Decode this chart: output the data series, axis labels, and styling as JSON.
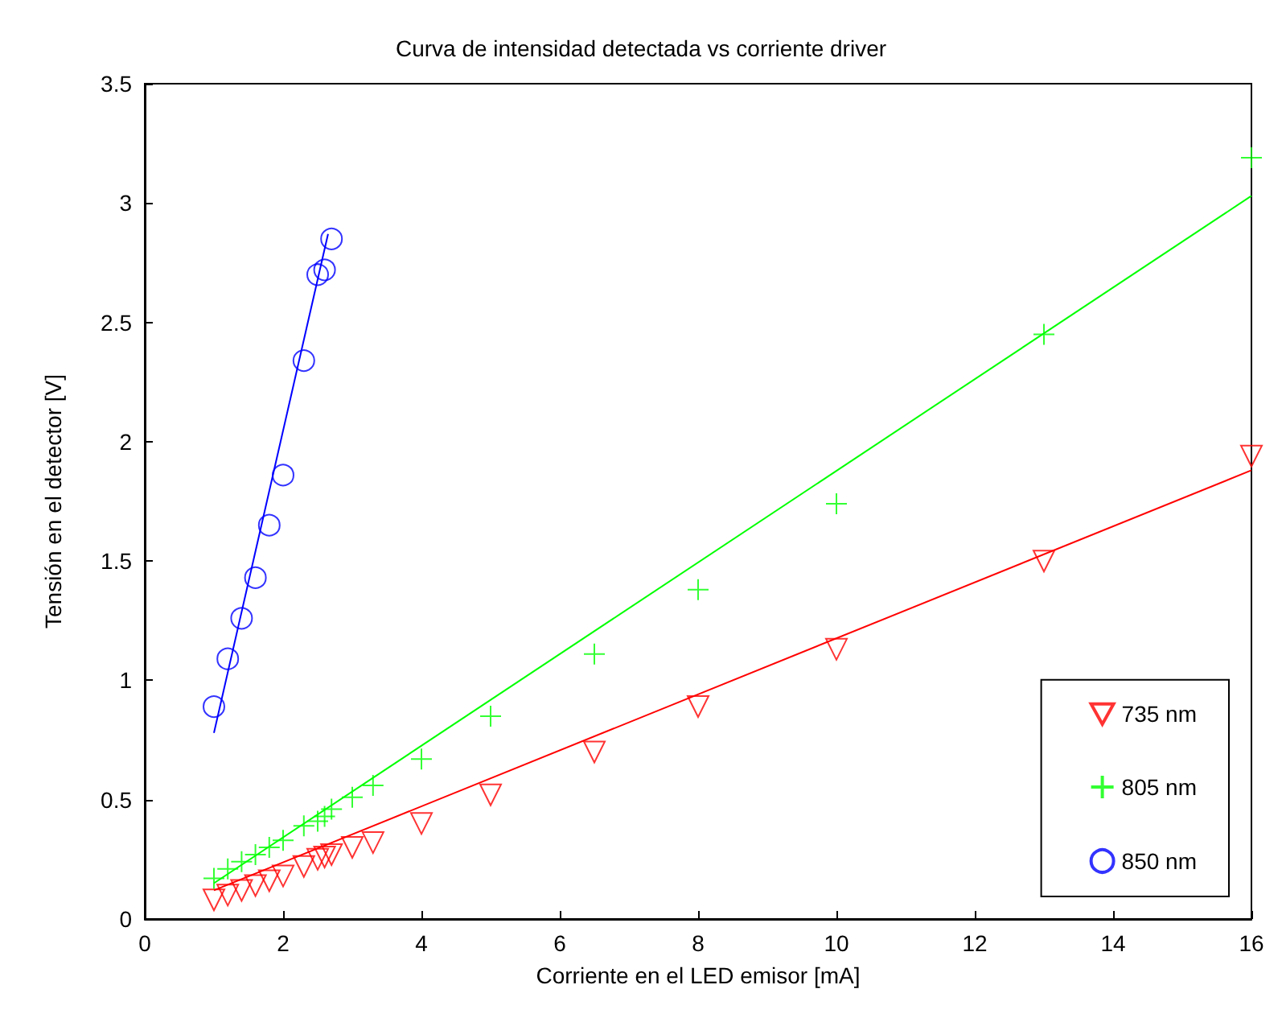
{
  "chart_data": {
    "type": "scatter",
    "title": "Curva de intensidad detectada vs corriente driver",
    "xlabel": "Corriente en el LED emisor [mA]",
    "ylabel": "Tensión en el detector [V]",
    "xlim": [
      0,
      16
    ],
    "xticks": [
      0,
      2,
      4,
      6,
      8,
      10,
      12,
      14,
      16
    ],
    "ylim": [
      0,
      3.5
    ],
    "yticks": [
      0,
      0.5,
      1,
      1.5,
      2,
      2.5,
      3,
      3.5
    ],
    "grid": false,
    "legend": "bottom right",
    "series": [
      {
        "name": "735 nm",
        "marker": "triangle",
        "color": "#ff0000",
        "x": [
          1,
          1.2,
          1.4,
          1.6,
          1.8,
          2,
          2.3,
          2.5,
          2.6,
          2.7,
          3,
          3.3,
          4,
          5,
          6.5,
          8,
          10,
          13,
          16
        ],
        "values": [
          0.08,
          0.1,
          0.12,
          0.14,
          0.16,
          0.18,
          0.22,
          0.25,
          0.26,
          0.27,
          0.3,
          0.32,
          0.4,
          0.52,
          0.7,
          0.89,
          1.13,
          1.5,
          1.94
        ]
      },
      {
        "type": "line",
        "marker": "none",
        "color": "#ff0000",
        "x": [
          1,
          16
        ],
        "values": [
          0.12,
          1.88
        ]
      },
      {
        "name": "805 nm",
        "marker": "cross",
        "color": "#00ff00",
        "x": [
          1,
          1.2,
          1.4,
          1.6,
          1.8,
          2,
          2.3,
          2.5,
          2.6,
          2.7,
          3,
          3.3,
          4,
          5,
          6.5,
          8,
          10,
          13,
          16
        ],
        "values": [
          0.17,
          0.21,
          0.24,
          0.27,
          0.3,
          0.33,
          0.39,
          0.41,
          0.43,
          0.46,
          0.51,
          0.56,
          0.67,
          0.85,
          1.11,
          1.38,
          1.74,
          2.45,
          3.19
        ]
      },
      {
        "type": "line",
        "marker": "none",
        "color": "#00ff00",
        "x": [
          1,
          16
        ],
        "values": [
          0.15,
          3.03
        ]
      },
      {
        "name": "850 nm",
        "marker": "circle",
        "color": "#0000ff",
        "x": [
          1,
          1.2,
          1.4,
          1.6,
          1.8,
          2,
          2.3,
          2.5,
          2.6,
          2.7
        ],
        "values": [
          0.89,
          1.09,
          1.26,
          1.43,
          1.65,
          1.86,
          2.34,
          2.7,
          2.72,
          2.85
        ]
      },
      {
        "type": "line",
        "marker": "none",
        "color": "#0000ff",
        "x": [
          1,
          2.65
        ],
        "values": [
          0.78,
          2.87
        ]
      }
    ]
  }
}
